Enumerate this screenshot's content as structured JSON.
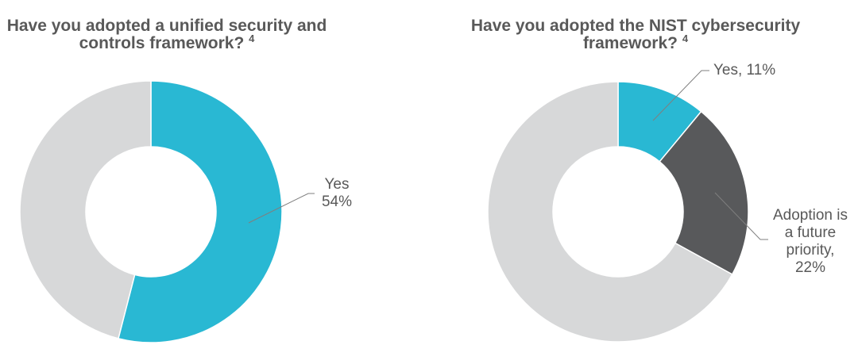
{
  "colors": {
    "accent_cyan": "#29B8D3",
    "dark_gray": "#58595B",
    "light_gray": "#D7D8D9",
    "title_text": "#595959",
    "label_text": "#595959",
    "leader_line": "#7F7F7F",
    "background": "#FFFFFF"
  },
  "chart_data": [
    {
      "type": "pie",
      "subtype": "donut",
      "title": "Have you adopted a unified security and controls framework?",
      "title_lines": [
        "Have you adopted a unified security and",
        "controls framework?"
      ],
      "footnote_marker": "4",
      "legend_position": "none",
      "segments": [
        {
          "label": "Yes",
          "value": 54,
          "color": "#29B8D3"
        },
        {
          "label": "",
          "value": 46,
          "color": "#D7D8D9"
        }
      ],
      "callouts": [
        {
          "segment": "Yes",
          "lines": [
            "Yes",
            "54%"
          ]
        }
      ]
    },
    {
      "type": "pie",
      "subtype": "donut",
      "title": "Have you adopted the NIST cybersecurity framework?",
      "title_lines": [
        "Have you adopted the NIST cybersecurity",
        "framework?"
      ],
      "footnote_marker": "4",
      "legend_position": "none",
      "segments": [
        {
          "label": "Yes",
          "value": 11,
          "color": "#29B8D3"
        },
        {
          "label": "Adoption is a future priority",
          "value": 22,
          "color": "#58595B"
        },
        {
          "label": "",
          "value": 67,
          "color": "#D7D8D9"
        }
      ],
      "callouts": [
        {
          "segment": "Yes",
          "lines": [
            "Yes, 11%"
          ]
        },
        {
          "segment": "Adoption is a future priority",
          "lines": [
            "Adoption is",
            "a future",
            "priority,",
            "22%"
          ]
        }
      ]
    }
  ]
}
